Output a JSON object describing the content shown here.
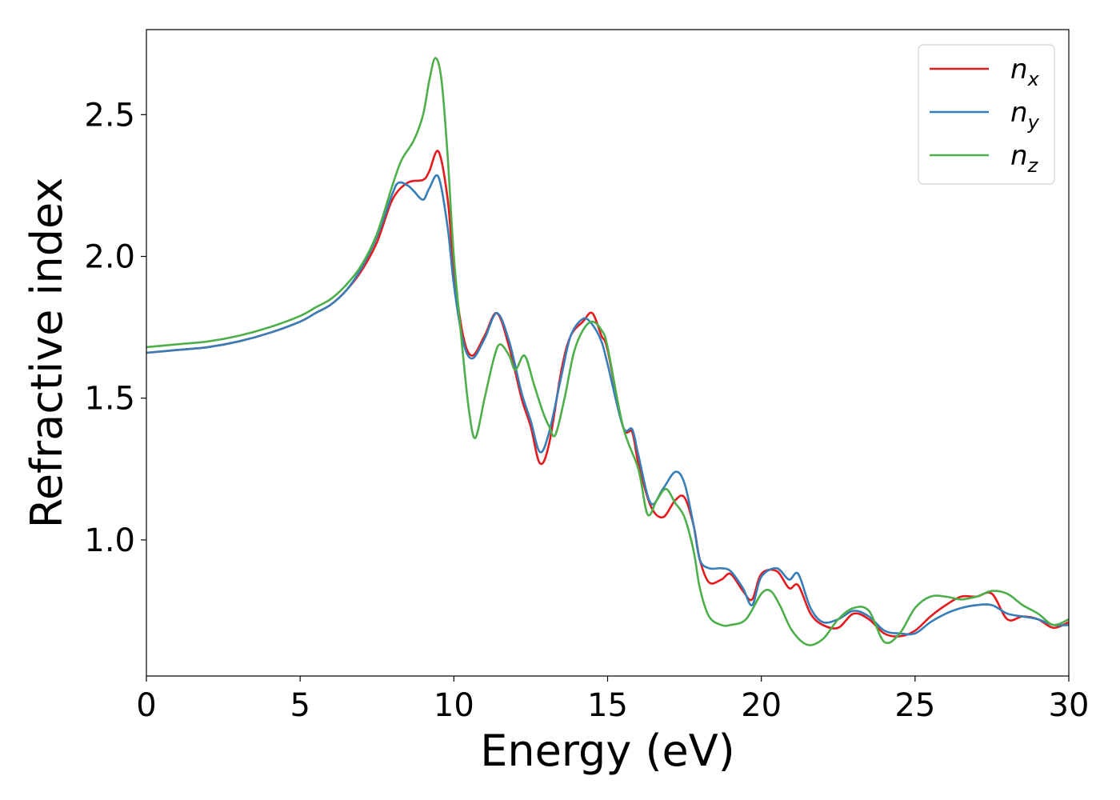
{
  "chart_data": {
    "type": "line",
    "title": "",
    "xlabel": "Energy (eV)",
    "ylabel": "Refractive index",
    "xlim": [
      0,
      30
    ],
    "ylim": [
      0.52,
      2.8
    ],
    "xticks": [
      0,
      5,
      10,
      15,
      20,
      25,
      30
    ],
    "xtick_labels": [
      "0",
      "5",
      "10",
      "15",
      "20",
      "25",
      "30"
    ],
    "yticks": [
      1.0,
      1.5,
      2.0,
      2.5
    ],
    "ytick_labels": [
      "1.0",
      "1.5",
      "2.0",
      "2.5"
    ],
    "grid": false,
    "legend_position": "top-right",
    "series": [
      {
        "name": "n_x",
        "label_base": "n",
        "label_sub": "x",
        "color": "#e41a1c",
        "x": [
          0,
          1,
          2,
          3,
          4,
          5,
          5.5,
          6,
          6.5,
          7,
          7.5,
          8,
          8.5,
          9,
          9.2,
          9.5,
          9.8,
          10,
          10.3,
          10.6,
          11,
          11.4,
          11.8,
          12.2,
          12.5,
          12.8,
          13.1,
          13.5,
          13.8,
          14.2,
          14.5,
          14.8,
          15,
          15.5,
          15.8,
          16,
          16.4,
          16.8,
          17.2,
          17.5,
          17.8,
          18,
          18.3,
          18.7,
          19,
          19.4,
          19.7,
          20,
          20.5,
          20.9,
          21.2,
          21.6,
          22,
          22.5,
          23,
          23.5,
          24,
          24.5,
          25,
          25.5,
          26,
          26.5,
          27,
          27.5,
          28,
          28.5,
          29,
          29.5,
          30
        ],
        "y": [
          1.66,
          1.67,
          1.68,
          1.7,
          1.73,
          1.77,
          1.8,
          1.83,
          1.88,
          1.95,
          2.05,
          2.2,
          2.26,
          2.27,
          2.3,
          2.37,
          2.2,
          1.95,
          1.72,
          1.65,
          1.72,
          1.8,
          1.68,
          1.5,
          1.4,
          1.27,
          1.34,
          1.6,
          1.72,
          1.77,
          1.8,
          1.72,
          1.67,
          1.4,
          1.38,
          1.27,
          1.12,
          1.08,
          1.14,
          1.15,
          1.05,
          0.93,
          0.85,
          0.86,
          0.88,
          0.82,
          0.79,
          0.88,
          0.89,
          0.83,
          0.84,
          0.74,
          0.7,
          0.69,
          0.74,
          0.72,
          0.67,
          0.66,
          0.68,
          0.73,
          0.77,
          0.8,
          0.8,
          0.81,
          0.72,
          0.73,
          0.72,
          0.69,
          0.71
        ]
      },
      {
        "name": "n_y",
        "label_base": "n",
        "label_sub": "y",
        "color": "#377eb8",
        "x": [
          0,
          1,
          2,
          3,
          4,
          5,
          5.5,
          6,
          6.5,
          7,
          7.5,
          8,
          8.2,
          8.5,
          8.7,
          9,
          9.2,
          9.5,
          9.8,
          10,
          10.3,
          10.6,
          11,
          11.4,
          11.8,
          12.2,
          12.5,
          12.8,
          13.1,
          13.5,
          13.8,
          14.2,
          14.5,
          14.8,
          15,
          15.5,
          15.8,
          16,
          16.4,
          16.8,
          17.2,
          17.5,
          17.8,
          18,
          18.3,
          18.7,
          19,
          19.4,
          19.7,
          20,
          20.5,
          20.9,
          21.2,
          21.6,
          22,
          22.5,
          23,
          23.5,
          24,
          24.5,
          25,
          25.5,
          26,
          26.5,
          27,
          27.5,
          28,
          28.5,
          29,
          29.5,
          30
        ],
        "y": [
          1.66,
          1.67,
          1.68,
          1.7,
          1.73,
          1.77,
          1.8,
          1.83,
          1.88,
          1.96,
          2.07,
          2.22,
          2.26,
          2.25,
          2.23,
          2.2,
          2.24,
          2.28,
          2.1,
          1.9,
          1.7,
          1.64,
          1.71,
          1.8,
          1.7,
          1.52,
          1.42,
          1.31,
          1.38,
          1.58,
          1.72,
          1.78,
          1.76,
          1.7,
          1.62,
          1.4,
          1.39,
          1.3,
          1.13,
          1.18,
          1.24,
          1.2,
          1.05,
          0.93,
          0.9,
          0.9,
          0.89,
          0.83,
          0.77,
          0.87,
          0.9,
          0.86,
          0.88,
          0.76,
          0.71,
          0.72,
          0.75,
          0.73,
          0.68,
          0.67,
          0.67,
          0.71,
          0.74,
          0.76,
          0.77,
          0.77,
          0.74,
          0.73,
          0.72,
          0.7,
          0.7
        ]
      },
      {
        "name": "n_z",
        "label_base": "n",
        "label_sub": "z",
        "color": "#4daf4a",
        "x": [
          0,
          1,
          2,
          3,
          4,
          5,
          5.5,
          6,
          6.5,
          7,
          7.5,
          8,
          8.3,
          8.7,
          9,
          9.2,
          9.4,
          9.6,
          9.8,
          10,
          10.3,
          10.5,
          10.7,
          11,
          11.3,
          11.5,
          11.8,
          12,
          12.3,
          12.6,
          12.9,
          13.1,
          13.3,
          13.6,
          13.9,
          14.2,
          14.5,
          14.8,
          15,
          15.5,
          16,
          16.3,
          16.6,
          16.9,
          17.2,
          17.5,
          17.8,
          18,
          18.3,
          18.7,
          19,
          19.5,
          20,
          20.3,
          20.6,
          21,
          21.5,
          22,
          22.5,
          23,
          23.5,
          24,
          24.5,
          25,
          25.5,
          26,
          26.5,
          27,
          27.5,
          28,
          28.5,
          29,
          29.5,
          30
        ],
        "y": [
          1.68,
          1.69,
          1.7,
          1.72,
          1.75,
          1.79,
          1.82,
          1.85,
          1.9,
          1.97,
          2.08,
          2.25,
          2.34,
          2.41,
          2.5,
          2.62,
          2.7,
          2.62,
          2.35,
          2.0,
          1.65,
          1.45,
          1.36,
          1.5,
          1.64,
          1.69,
          1.65,
          1.6,
          1.65,
          1.55,
          1.45,
          1.4,
          1.37,
          1.5,
          1.66,
          1.74,
          1.77,
          1.74,
          1.68,
          1.4,
          1.25,
          1.09,
          1.14,
          1.18,
          1.13,
          1.08,
          0.96,
          0.83,
          0.73,
          0.7,
          0.7,
          0.72,
          0.81,
          0.82,
          0.77,
          0.68,
          0.63,
          0.65,
          0.72,
          0.76,
          0.75,
          0.64,
          0.67,
          0.76,
          0.8,
          0.8,
          0.79,
          0.8,
          0.82,
          0.81,
          0.77,
          0.74,
          0.7,
          0.72
        ]
      }
    ]
  }
}
